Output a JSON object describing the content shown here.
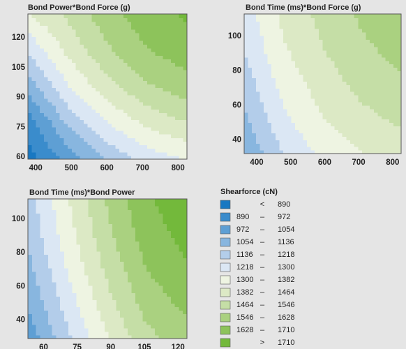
{
  "chart_data": [
    {
      "type": "contour",
      "title": "Bond Power*Bond Force (g)",
      "x": [
        378,
        490,
        602,
        713,
        825
      ],
      "y": [
        59,
        77,
        95,
        113,
        132
      ],
      "z": [
        [
          850,
          1000,
          1150,
          1250,
          1300
        ],
        [
          920,
          1150,
          1300,
          1400,
          1460
        ],
        [
          1080,
          1290,
          1430,
          1530,
          1590
        ],
        [
          1220,
          1400,
          1530,
          1620,
          1670
        ],
        [
          1380,
          1480,
          1600,
          1680,
          1720
        ]
      ],
      "xlim": [
        378,
        825
      ],
      "ylim": [
        59,
        132
      ],
      "xticks": [
        400,
        500,
        600,
        700,
        800
      ],
      "yticks": [
        60,
        75,
        90,
        105,
        120
      ]
    },
    {
      "type": "contour",
      "title": "Bond Time (ms)*Bond Force (g)",
      "x": [
        363,
        478,
        594,
        710,
        825
      ],
      "y": [
        32,
        52,
        72,
        92,
        113
      ],
      "z": [
        [
          1060,
          1220,
          1320,
          1380,
          1420
        ],
        [
          1120,
          1280,
          1380,
          1440,
          1480
        ],
        [
          1170,
          1330,
          1420,
          1490,
          1530
        ],
        [
          1220,
          1370,
          1460,
          1530,
          1570
        ],
        [
          1260,
          1400,
          1490,
          1560,
          1600
        ]
      ],
      "xlim": [
        363,
        825
      ],
      "ylim": [
        32,
        113
      ],
      "xticks": [
        400,
        500,
        600,
        700,
        800
      ],
      "yticks": [
        40,
        60,
        80,
        100
      ]
    },
    {
      "type": "contour",
      "title": "Bond Time (ms)*Bond Power",
      "x": [
        53,
        71,
        89,
        106,
        124
      ],
      "y": [
        29,
        50,
        71,
        91,
        112
      ],
      "z": [
        [
          1000,
          1200,
          1380,
          1520,
          1590
        ],
        [
          1060,
          1260,
          1440,
          1580,
          1650
        ],
        [
          1110,
          1310,
          1490,
          1630,
          1700
        ],
        [
          1150,
          1350,
          1530,
          1670,
          1740
        ],
        [
          1180,
          1380,
          1560,
          1700,
          1760
        ]
      ],
      "xlim": [
        53,
        124
      ],
      "ylim": [
        29,
        112
      ],
      "xticks": [
        60,
        75,
        90,
        105,
        120
      ],
      "yticks": [
        40,
        60,
        80,
        100
      ]
    }
  ],
  "legend": {
    "title": "Shearforce (cN)",
    "levels": [
      890,
      972,
      1054,
      1136,
      1218,
      1300,
      1382,
      1464,
      1546,
      1628,
      1710
    ],
    "colors": [
      "#1878c2",
      "#3a8ccc",
      "#5e9fd4",
      "#88b6df",
      "#b3cdea",
      "#dbe7f4",
      "#eef4e2",
      "#dce9c5",
      "#c5dea6",
      "#aad180",
      "#8dc35b",
      "#73b93b"
    ],
    "below": "<",
    "range": "–",
    "above": ">"
  }
}
